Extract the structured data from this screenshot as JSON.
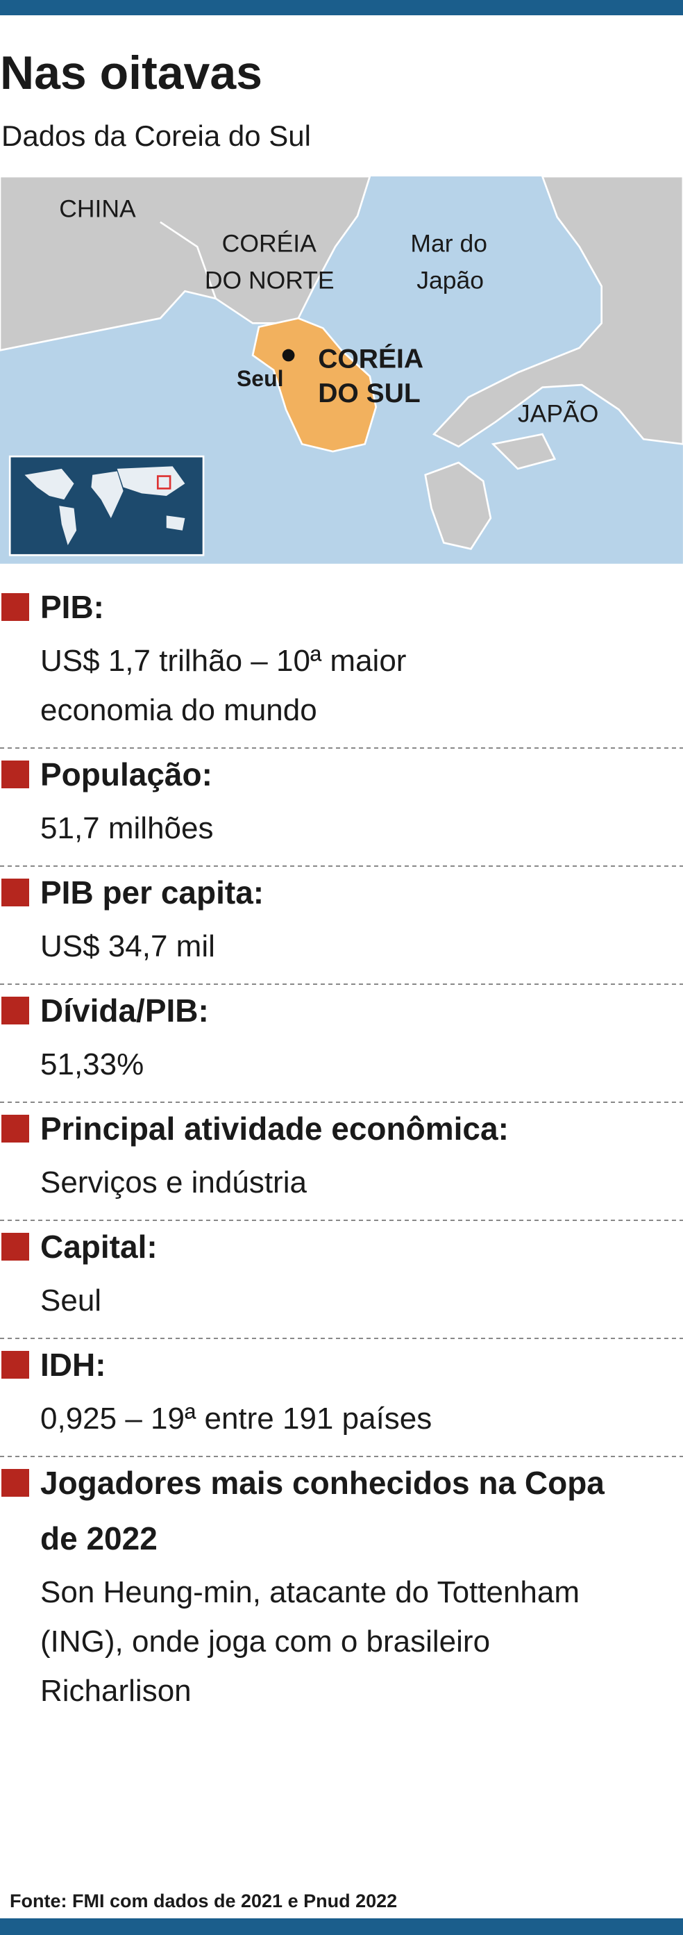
{
  "header": {
    "title": "Nas oitavas",
    "subtitle": "Dados da Coreia do Sul"
  },
  "map": {
    "labels": {
      "china": "CHINA",
      "north_korea": [
        "CORÉIA",
        "DO NORTE"
      ],
      "sea": [
        "Mar do",
        "Japão"
      ],
      "capital": "Seul",
      "south_korea": [
        "CORÉIA",
        "DO SUL"
      ],
      "japan": "JAPÃO"
    }
  },
  "items": [
    {
      "label": "PIB:",
      "text": [
        "US$ 1,7 trilhão – 10ª maior",
        "economia do mundo"
      ]
    },
    {
      "label": "População:",
      "text": [
        "51,7 milhões"
      ]
    },
    {
      "label": "PIB per capita:",
      "text": [
        "US$ 34,7 mil"
      ]
    },
    {
      "label": "Dívida/PIB:",
      "text": [
        "51,33%"
      ]
    },
    {
      "label": "Principal atividade econômica:",
      "text": [
        "Serviços e indústria"
      ]
    },
    {
      "label": "Capital:",
      "text": [
        "Seul"
      ]
    },
    {
      "label": "IDH:",
      "text": [
        "0,925 – 19ª entre 191 países"
      ]
    },
    {
      "label": [
        "Jogadores mais conhecidos na Copa",
        "de 2022"
      ],
      "text": [
        "Son Heung-min, atacante do Tottenham",
        "(ING), onde joga com o brasileiro",
        "Richarlison"
      ]
    }
  ],
  "source": "Fonte: FMI com dados de 2021 e Pnud 2022"
}
